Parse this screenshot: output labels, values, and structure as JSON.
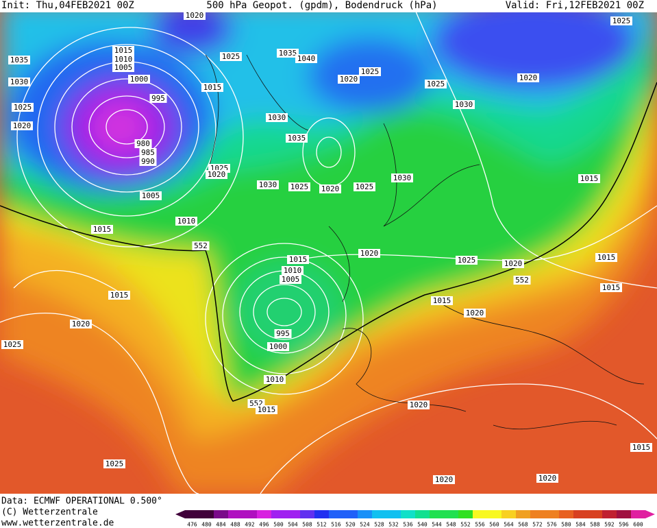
{
  "header": {
    "init": "Init: Thu,04FEB2021 00Z",
    "title": "500 hPa Geopot. (gpdm), Bodendruck (hPa)",
    "valid": "Valid: Fri,12FEB2021 00Z"
  },
  "isobar_labels": [
    "1020",
    "1035",
    "1015",
    "1010",
    "1005",
    "1000",
    "1030",
    "995",
    "1025",
    "1020",
    "980",
    "985",
    "990",
    "1005",
    "1015",
    "1010",
    "1025",
    "1015",
    "1035",
    "1040",
    "1025",
    "1020",
    "1025",
    "1020",
    "1025",
    "1030",
    "1030",
    "1035",
    "1025",
    "1020",
    "1030",
    "1025",
    "1020",
    "1025",
    "1030",
    "1015",
    "552",
    "1015",
    "1010",
    "1005",
    "1020",
    "1025",
    "1020",
    "552",
    "1015",
    "1015",
    "1015",
    "1015",
    "1020",
    "1020",
    "1025",
    "995",
    "1000",
    "1010",
    "552",
    "1015",
    "1020",
    "1025",
    "1015",
    "1020",
    "1020"
  ],
  "footer": {
    "data": "Data: ECMWF OPERATIONAL 0.500°",
    "copyright": "(C) Wetterzentrale",
    "url": "www.wetterzentrale.de"
  },
  "colorbar": {
    "values": [
      476,
      480,
      484,
      488,
      492,
      496,
      500,
      504,
      508,
      512,
      516,
      520,
      524,
      528,
      532,
      536,
      540,
      544,
      548,
      552,
      556,
      560,
      564,
      568,
      572,
      576,
      580,
      584,
      588,
      592,
      596,
      600
    ]
  }
}
